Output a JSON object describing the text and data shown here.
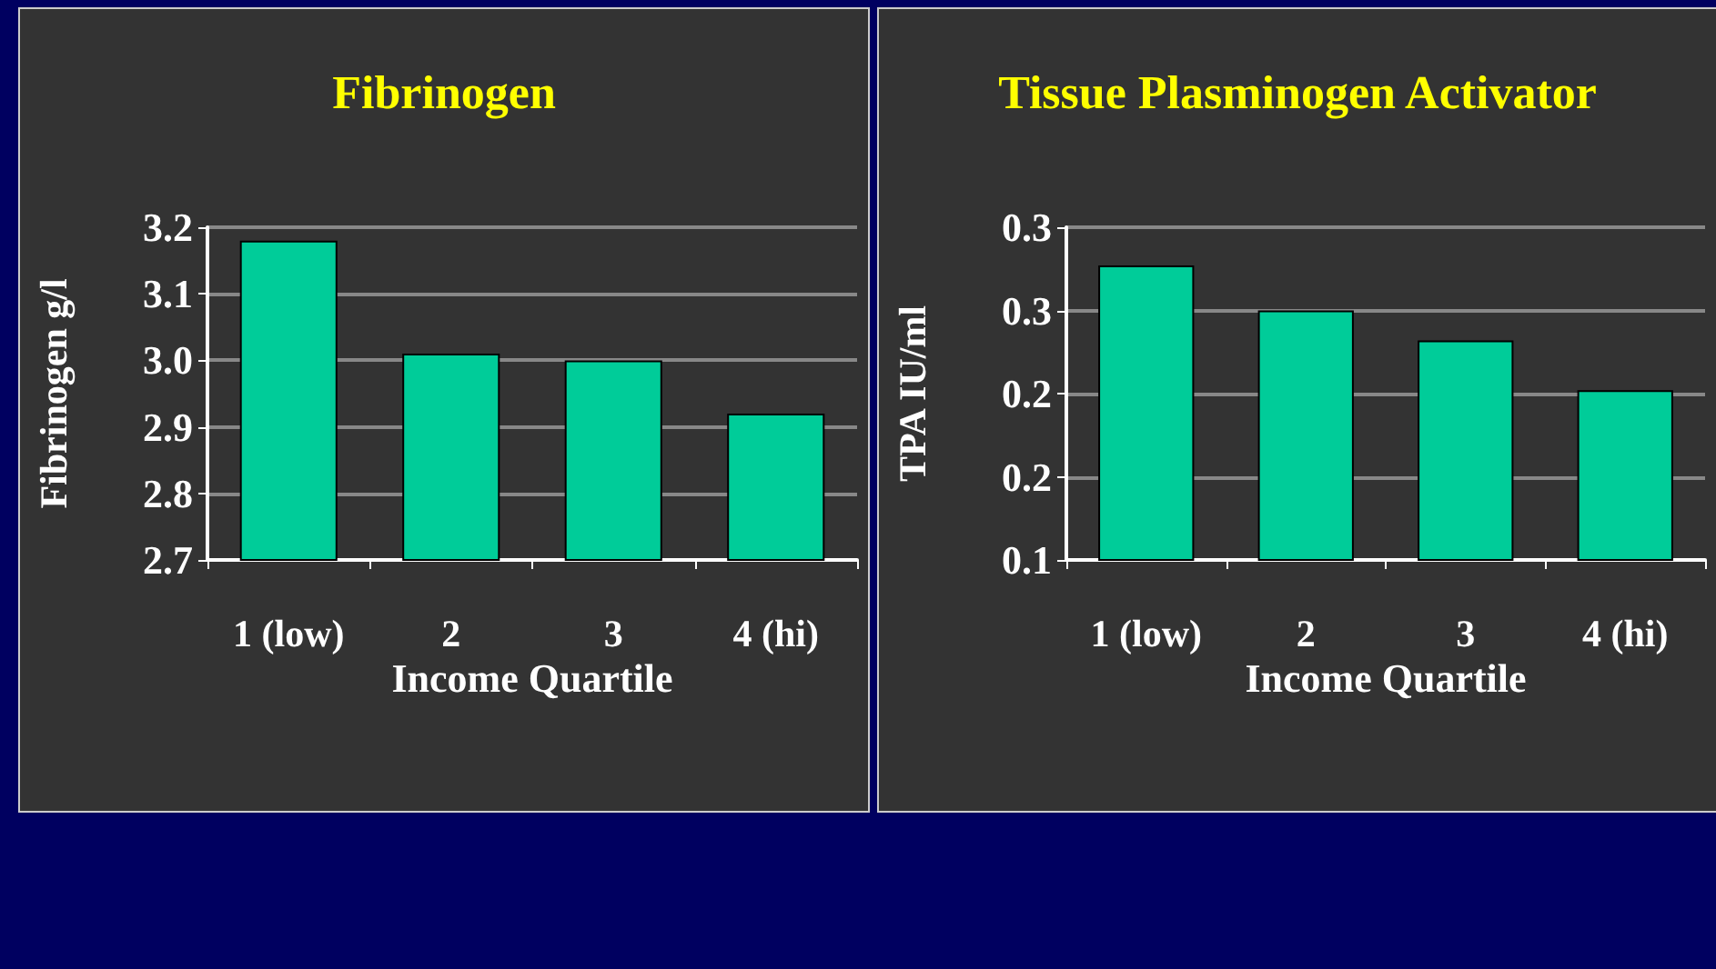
{
  "chart_data": [
    {
      "type": "bar",
      "title": "Fibrinogen",
      "xlabel": "Income Quartile",
      "ylabel": "Fibrinogen g/l",
      "categories": [
        "1 (low)",
        "2",
        "3",
        "4 (hi)"
      ],
      "values": [
        3.18,
        3.01,
        3.0,
        2.92
      ],
      "color": "#00cc99",
      "ylim": [
        2.7,
        3.2
      ],
      "yticks": [
        {
          "value": 2.7,
          "label": "2.7"
        },
        {
          "value": 2.8,
          "label": "2.8"
        },
        {
          "value": 2.9,
          "label": "2.9"
        },
        {
          "value": 3.0,
          "label": "3.0"
        },
        {
          "value": 3.1,
          "label": "3.1"
        },
        {
          "value": 3.2,
          "label": "3.2"
        }
      ],
      "grid": "y"
    },
    {
      "type": "bar",
      "title": "Tissue Plasminogen Activator",
      "xlabel": "Income Quartile",
      "ylabel": "TPA IU/ml",
      "categories": [
        "1 (low)",
        "2",
        "3",
        "4 (hi)"
      ],
      "values": [
        0.277,
        0.25,
        0.232,
        0.202
      ],
      "color": "#00cc99",
      "ylim": [
        0.1,
        0.3
      ],
      "yticks": [
        0.1,
        {
          "value": 0.15,
          "label": "0.2"
        },
        0.2,
        {
          "value": 0.25,
          "label": "0.3"
        },
        0.3
      ],
      "grid": "y"
    }
  ]
}
